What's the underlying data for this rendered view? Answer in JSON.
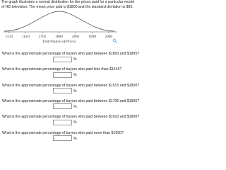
{
  "intro": "The graph illustrates a normal distribution for the prices paid for a particular model of HD television. The mean price paid is $1800 and the standard deviation is $95.",
  "graph": {
    "ticks": [
      "1515",
      "1610",
      "1705",
      "1800",
      "1895",
      "1990",
      "2085"
    ],
    "caption": "Distribution of Prices"
  },
  "questions": [
    {
      "text": "What is the approximate percentage of buyers who paid between $1800 and $1895?",
      "unit": "%"
    },
    {
      "text": "What is the approximate percentage of buyers who paid less than $1515?",
      "unit": "%"
    },
    {
      "text": "What is the approximate percentage of buyers who paid between $1515 and $1800?",
      "unit": "%"
    },
    {
      "text": "What is the approximate percentage of buyers who paid between $1705 and $1895?",
      "unit": "%"
    },
    {
      "text": "What is the approximate percentage of buyers who paid between $1610 and $1800?",
      "unit": "%"
    },
    {
      "text": "What is the approximate percentage of buyers who paid more than $1990?",
      "unit": "%"
    }
  ]
}
